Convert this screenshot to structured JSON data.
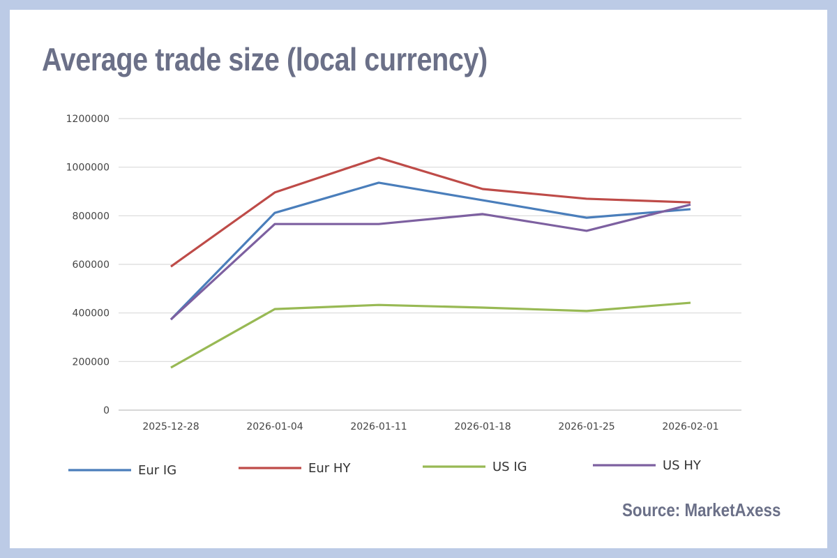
{
  "chart_data": {
    "type": "line",
    "title": "Average trade size (local currency)",
    "source": "Source: MarketAxess",
    "xlabel": "",
    "ylabel": "",
    "ylim": [
      0,
      1200000
    ],
    "yticks": [
      0,
      200000,
      400000,
      600000,
      800000,
      1000000,
      1200000
    ],
    "grid": true,
    "legend_position": "bottom",
    "categories": [
      "2025-12-28",
      "2026-01-04",
      "2026-01-11",
      "2026-01-18",
      "2026-01-25",
      "2026-02-01"
    ],
    "series": [
      {
        "name": "Eur IG",
        "color": "#4a7ebb",
        "values": [
          373000,
          812000,
          936000,
          864000,
          792000,
          827000
        ]
      },
      {
        "name": "Eur HY",
        "color": "#be4b48",
        "values": [
          591000,
          896000,
          1039000,
          910000,
          870000,
          855000
        ]
      },
      {
        "name": "US IG",
        "color": "#98b954",
        "values": [
          175000,
          416000,
          433000,
          422000,
          408000,
          442000
        ]
      },
      {
        "name": "US HY",
        "color": "#7d60a0",
        "values": [
          373000,
          766000,
          766000,
          807000,
          738000,
          846000
        ]
      }
    ]
  }
}
